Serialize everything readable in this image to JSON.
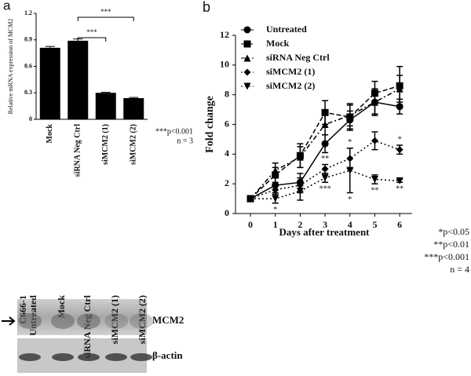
{
  "chart_data": [
    {
      "type": "bar",
      "panel": "a",
      "ylabel": "Relative mRNA expression of MCM2",
      "categories": [
        "Mock",
        "siRNA Neg Ctrl",
        "siMCM2 (1)",
        "siMCM2 (2)"
      ],
      "values": [
        0.81,
        0.89,
        0.3,
        0.24
      ],
      "errors": [
        0.015,
        0.02,
        0.006,
        0.008
      ],
      "color": "#000000",
      "ylim": [
        0,
        1.2
      ],
      "yticks": [
        0,
        0.3,
        0.6,
        0.9,
        1.2
      ],
      "brackets": [
        {
          "text": "***",
          "from": 1,
          "to": 2
        },
        {
          "text": "***",
          "from": 1,
          "to": 3
        }
      ],
      "notes": [
        "***p<0.001",
        "n = 3"
      ]
    },
    {
      "type": "line",
      "panel": "b",
      "xlabel": "Days after treatment",
      "ylabel": "Fold change",
      "x": [
        0,
        1,
        2,
        3,
        4,
        5,
        6
      ],
      "xlim": [
        -0.6,
        6.5
      ],
      "xticks": [
        0,
        1,
        2,
        3,
        4,
        5,
        6
      ],
      "ylim": [
        0,
        12
      ],
      "yticks": [
        0,
        2,
        4,
        6,
        8,
        10,
        12
      ],
      "series": [
        {
          "name": "Untreated",
          "color": "#000000",
          "marker": "circle",
          "dash": "solid",
          "values": [
            1,
            1.9,
            2.1,
            4.7,
            6.3,
            7.5,
            7.2
          ],
          "errors": [
            0.1,
            0.5,
            0.6,
            0.6,
            0.6,
            0.8,
            0.5
          ]
        },
        {
          "name": "Mock",
          "color": "#000000",
          "marker": "square",
          "dash": "dashed",
          "values": [
            1,
            2.6,
            3.9,
            6.8,
            6.5,
            8.1,
            8.6
          ],
          "errors": [
            0.1,
            0.5,
            0.8,
            0.8,
            0.9,
            0.8,
            1.3
          ]
        },
        {
          "name": "siRNA Neg Ctrl",
          "color": "#000000",
          "marker": "triangle",
          "dash": "dashdot",
          "values": [
            1,
            2.9,
            3.8,
            6.0,
            6.6,
            7.5,
            8.4
          ],
          "errors": [
            0.1,
            0.5,
            0.7,
            0.7,
            0.7,
            0.9,
            0.9
          ]
        },
        {
          "name": "siMCM2 (1)",
          "color": "#000000",
          "marker": "diamond",
          "dash": "dotted",
          "values": [
            1,
            1.6,
            1.9,
            3.0,
            3.7,
            4.9,
            4.3
          ],
          "errors": [
            0.1,
            0.4,
            0.5,
            0.3,
            0.7,
            0.6,
            0.3
          ],
          "significance": [
            null,
            null,
            null,
            "**",
            "*",
            null,
            "*"
          ]
        },
        {
          "name": "siMCM2 (2)",
          "color": "#000000",
          "marker": "triangle-down",
          "dash": "dotted",
          "values": [
            1,
            1.0,
            1.5,
            2.4,
            2.9,
            2.3,
            2.2
          ],
          "errors": [
            0.1,
            0.3,
            0.6,
            0.3,
            1.5,
            0.3,
            0.1
          ],
          "significance": [
            null,
            "*",
            null,
            "***",
            "*",
            "**",
            "**"
          ]
        }
      ],
      "legend": "upper-left",
      "notes": [
        "*p<0.05",
        "**p<0.01",
        "***p<0.001",
        "n = 4"
      ]
    }
  ],
  "blot": {
    "lanes": [
      [
        "C666-1",
        "Untreated"
      ],
      [
        "Mock"
      ],
      [
        "siRNA Neg Ctrl"
      ],
      [
        "siMCM2 (1)"
      ],
      [
        "siMCM2 (2)"
      ]
    ],
    "rows": [
      "MCM2",
      "β-actin"
    ]
  }
}
